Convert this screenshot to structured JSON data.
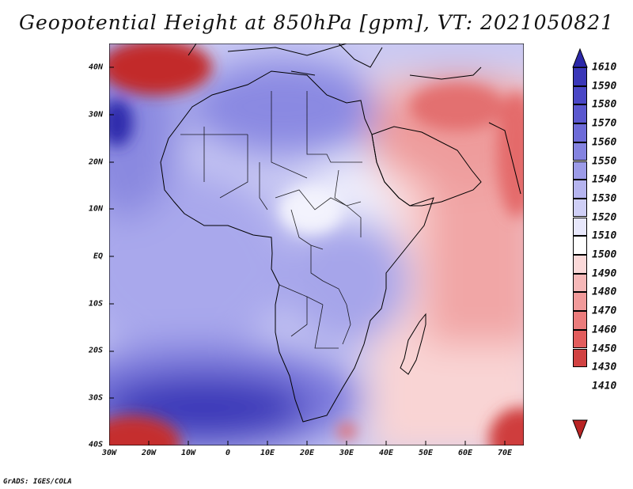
{
  "title": "Geopotential Height at 850hPa [gpm], VT: 2021050821",
  "credit": "GrADS: IGES/COLA",
  "map": {
    "lat_labels": [
      "40N",
      "30N",
      "20N",
      "10N",
      "EQ",
      "10S",
      "20S",
      "30S",
      "40S"
    ],
    "lon_labels": [
      "30W",
      "20W",
      "10W",
      "0",
      "10E",
      "20E",
      "30E",
      "40E",
      "50E",
      "60E",
      "70E"
    ],
    "extent": {
      "lon_min": -30,
      "lon_max": 75,
      "lat_min": -40,
      "lat_max": 45
    }
  },
  "colorbar": {
    "levels": [
      "1610",
      "1590",
      "1580",
      "1570",
      "1560",
      "1550",
      "1540",
      "1530",
      "1520",
      "1510",
      "1500",
      "1490",
      "1480",
      "1470",
      "1460",
      "1450",
      "1430",
      "1410"
    ],
    "colors": [
      "#2b28a8",
      "#3a37b8",
      "#4a47c6",
      "#5b58cf",
      "#6d6bd8",
      "#8483e0",
      "#9c9be8",
      "#b5b4ef",
      "#cfcff6",
      "#e7e7fb",
      "#ffffff",
      "#fbd9d9",
      "#f6b8b8",
      "#f19a9a",
      "#eb7c7c",
      "#e25d5d",
      "#d14242",
      "#b92424"
    ]
  }
}
